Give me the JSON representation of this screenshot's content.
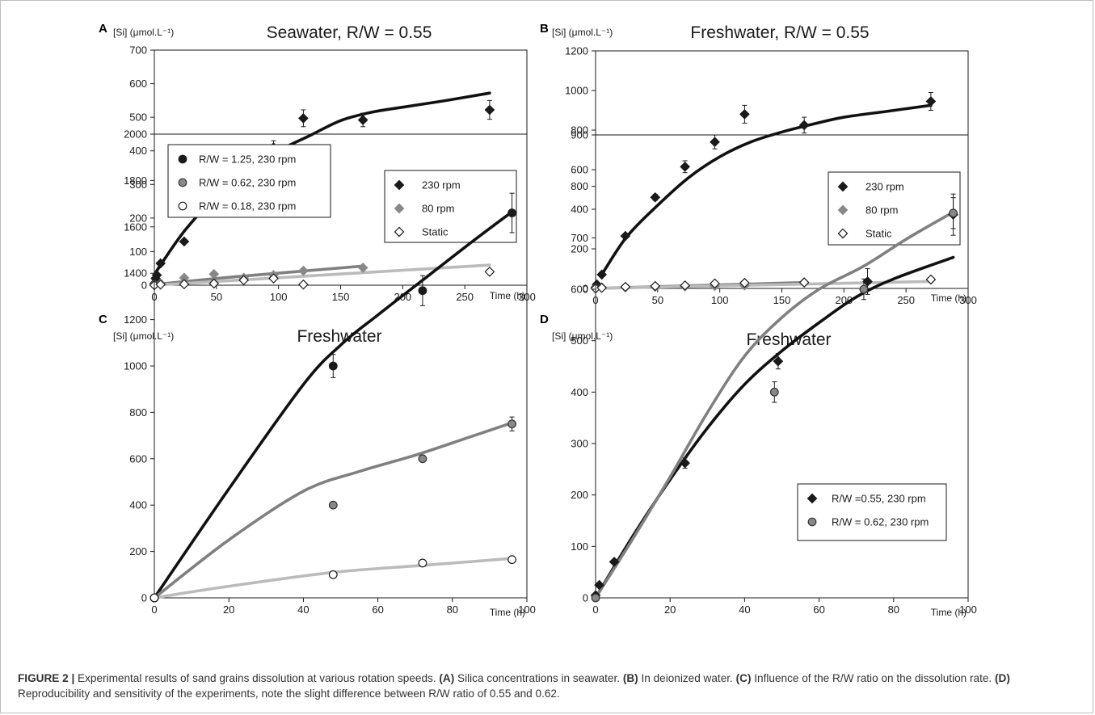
{
  "chart_data": [
    {
      "type": "scatter",
      "panel": "A",
      "title": "Seawater, R/W = 0.55",
      "ylabel": "[Si] (μmol.L⁻¹)",
      "xlabel": "Time (h)",
      "xlim": [
        0,
        300
      ],
      "ylim": [
        0,
        700
      ],
      "xticks": [
        0,
        50,
        100,
        150,
        200,
        250,
        300
      ],
      "yticks": [
        0,
        100,
        200,
        300,
        400,
        500,
        600,
        700
      ],
      "legend_position": "right",
      "series": [
        {
          "name": "230 rpm",
          "marker": "diamond",
          "fill": "#1a1a1a",
          "stroke": "#1a1a1a",
          "x": [
            0,
            1,
            2,
            5,
            24,
            48,
            72,
            96,
            120,
            168,
            270
          ],
          "y": [
            5,
            20,
            30,
            65,
            130,
            235,
            325,
            410,
            497,
            492,
            522
          ],
          "err": [
            0,
            0,
            0,
            0,
            0,
            10,
            15,
            20,
            25,
            20,
            28
          ]
        },
        {
          "name": "80 rpm",
          "marker": "diamond",
          "fill": "#888888",
          "stroke": "#888888",
          "x": [
            0,
            5,
            24,
            48,
            72,
            96,
            120,
            168
          ],
          "y": [
            2,
            5,
            22,
            33,
            22,
            30,
            43,
            52
          ],
          "err": [
            0,
            0,
            0,
            0,
            0,
            0,
            0,
            0
          ]
        },
        {
          "name": "Static",
          "marker": "diamond",
          "fill": "#ffffff",
          "stroke": "#1a1a1a",
          "x": [
            0,
            5,
            24,
            48,
            72,
            96,
            120,
            270
          ],
          "y": [
            0,
            2,
            3,
            5,
            15,
            20,
            2,
            40
          ],
          "err": [
            0,
            0,
            0,
            0,
            0,
            0,
            0,
            0
          ]
        }
      ],
      "fits": [
        {
          "color": "#111111",
          "x": [
            0,
            5,
            25,
            50,
            75,
            100,
            125,
            150,
            175,
            200,
            235,
            270
          ],
          "y": [
            30,
            60,
            165,
            265,
            340,
            400,
            445,
            490,
            515,
            530,
            550,
            572
          ]
        },
        {
          "color": "#808080",
          "x": [
            0,
            50,
            100,
            168
          ],
          "y": [
            2,
            20,
            36,
            57
          ]
        },
        {
          "color": "#bbbbbb",
          "x": [
            0,
            135,
            270
          ],
          "y": [
            0,
            30,
            60
          ]
        }
      ]
    },
    {
      "type": "scatter",
      "panel": "B",
      "title": "Freshwater, R/W = 0.55",
      "ylabel": "[Si] (μmol.L⁻¹)",
      "xlabel": "Time (h)",
      "xlim": [
        0,
        300
      ],
      "ylim": [
        0,
        1200
      ],
      "xticks": [
        0,
        50,
        100,
        150,
        200,
        250,
        300
      ],
      "yticks": [
        0,
        200,
        400,
        600,
        800,
        1000,
        1200
      ],
      "legend_position": "right",
      "series": [
        {
          "name": "230 rpm",
          "marker": "diamond",
          "fill": "#1a1a1a",
          "stroke": "#1a1a1a",
          "x": [
            0,
            1,
            5,
            24,
            48,
            72,
            96,
            120,
            168,
            270
          ],
          "y": [
            5,
            20,
            70,
            265,
            460,
            615,
            740,
            880,
            825,
            945
          ],
          "err": [
            0,
            0,
            0,
            0,
            15,
            30,
            35,
            45,
            40,
            45
          ]
        },
        {
          "name": "80 rpm",
          "marker": "diamond",
          "fill": "#888888",
          "stroke": "#888888",
          "x": [
            0,
            5,
            24,
            48,
            72,
            96,
            120,
            168
          ],
          "y": [
            2,
            5,
            5,
            8,
            10,
            12,
            15,
            30
          ],
          "err": [
            0,
            0,
            0,
            0,
            0,
            0,
            0,
            0
          ]
        },
        {
          "name": "Static",
          "marker": "diamond",
          "fill": "#ffffff",
          "stroke": "#1a1a1a",
          "x": [
            0,
            5,
            24,
            48,
            72,
            96,
            120,
            168,
            270
          ],
          "y": [
            0,
            3,
            8,
            12,
            15,
            25,
            28,
            30,
            45
          ],
          "err": [
            0,
            0,
            0,
            0,
            0,
            0,
            0,
            0,
            0
          ]
        }
      ],
      "fits": [
        {
          "color": "#111111",
          "x": [
            5,
            25,
            50,
            75,
            100,
            125,
            150,
            175,
            200,
            235,
            270
          ],
          "y": [
            70,
            260,
            420,
            560,
            665,
            740,
            790,
            830,
            865,
            895,
            925
          ]
        },
        {
          "color": "#808080",
          "x": [
            0,
            168
          ],
          "y": [
            0,
            30
          ]
        },
        {
          "color": "#bbbbbb",
          "x": [
            0,
            270
          ],
          "y": [
            0,
            35
          ]
        }
      ]
    },
    {
      "type": "scatter",
      "panel": "C",
      "title": "Freshwater",
      "ylabel": "[Si] (μmol.L⁻¹)",
      "xlabel": "Time (h)",
      "xlim": [
        0,
        100
      ],
      "ylim": [
        0,
        2000
      ],
      "xticks": [
        0,
        20,
        40,
        60,
        80,
        100
      ],
      "yticks": [
        0,
        200,
        400,
        600,
        800,
        1000,
        1200,
        1400,
        1600,
        1800,
        2000
      ],
      "legend_position": "top-left",
      "series": [
        {
          "name": "R/W = 1.25, 230 rpm",
          "marker": "circle",
          "fill": "#1a1a1a",
          "stroke": "#1a1a1a",
          "x": [
            0,
            48,
            72,
            96
          ],
          "y": [
            0,
            1000,
            1325,
            1660
          ],
          "err": [
            0,
            50,
            65,
            85
          ]
        },
        {
          "name": "R/W = 0.62,  230 rpm",
          "marker": "circle",
          "fill": "#888888",
          "stroke": "#333333",
          "x": [
            0,
            48,
            72,
            96
          ],
          "y": [
            0,
            400,
            600,
            750
          ],
          "err": [
            0,
            0,
            0,
            30
          ]
        },
        {
          "name": "R/W = 0.18, 230 rpm",
          "marker": "circle",
          "fill": "#ffffff",
          "stroke": "#1a1a1a",
          "x": [
            0,
            48,
            72,
            96
          ],
          "y": [
            0,
            100,
            150,
            165
          ],
          "err": [
            0,
            0,
            0,
            0
          ]
        }
      ],
      "fits": [
        {
          "color": "#111111",
          "x": [
            0,
            20,
            40,
            50,
            60,
            72,
            84,
            96
          ],
          "y": [
            0,
            470,
            920,
            1090,
            1220,
            1370,
            1520,
            1665
          ]
        },
        {
          "color": "#808080",
          "x": [
            0,
            20,
            40,
            55,
            70,
            84,
            96
          ],
          "y": [
            0,
            250,
            460,
            545,
            615,
            690,
            755
          ]
        },
        {
          "color": "#bbbbbb",
          "x": [
            0,
            20,
            48,
            72,
            96
          ],
          "y": [
            0,
            50,
            110,
            140,
            170
          ]
        }
      ]
    },
    {
      "type": "scatter",
      "panel": "D",
      "title": "Freshwater",
      "ylabel": "[Si] (μmol.L⁻¹)",
      "xlabel": "Time (h)",
      "xlim": [
        0,
        100
      ],
      "ylim": [
        0,
        900
      ],
      "xticks": [
        0,
        20,
        40,
        60,
        80,
        100
      ],
      "yticks": [
        0,
        100,
        200,
        300,
        400,
        500,
        600,
        700,
        800,
        900
      ],
      "legend_position": "bottom-right",
      "series": [
        {
          "name": "R/W =0.55, 230 rpm",
          "marker": "diamond",
          "fill": "#1a1a1a",
          "stroke": "#1a1a1a",
          "x": [
            0,
            1,
            5,
            24,
            49,
            73,
            96
          ],
          "y": [
            5,
            25,
            70,
            262,
            460,
            615,
            745
          ],
          "err": [
            0,
            0,
            0,
            10,
            15,
            25,
            40
          ]
        },
        {
          "name": "R/W = 0.62, 230 rpm",
          "marker": "circle",
          "fill": "#888888",
          "stroke": "#333333",
          "x": [
            0,
            48,
            72,
            96
          ],
          "y": [
            0,
            400,
            600,
            748
          ],
          "err": [
            0,
            20,
            20,
            30
          ]
        }
      ],
      "fits": [
        {
          "color": "#111111",
          "x": [
            0,
            10,
            20,
            30,
            40,
            50,
            60,
            70,
            80,
            96
          ],
          "y": [
            0,
            120,
            230,
            330,
            415,
            480,
            535,
            585,
            620,
            662
          ]
        },
        {
          "color": "#808080",
          "x": [
            0,
            10,
            20,
            30,
            40,
            50,
            60,
            72,
            84,
            96
          ],
          "y": [
            0,
            115,
            235,
            360,
            470,
            545,
            600,
            645,
            700,
            750
          ]
        }
      ]
    }
  ],
  "caption": {
    "label": "FIGURE 2 |",
    "intro": " Experimental results of sand grains dissolution at various rotation speeds. ",
    "a_label": "(A)",
    "a_text": " Silica concentrations in seawater. ",
    "b_label": "(B)",
    "b_text": " In deionized water. ",
    "c_label": "(C)",
    "c_text": " Influence of the R/W ratio on the dissolution rate. ",
    "d_label": "(D)",
    "d_text": " Reproducibility and sensitivity of the experiments, note the slight difference between R/W ratio of 0.55 and 0.62."
  }
}
